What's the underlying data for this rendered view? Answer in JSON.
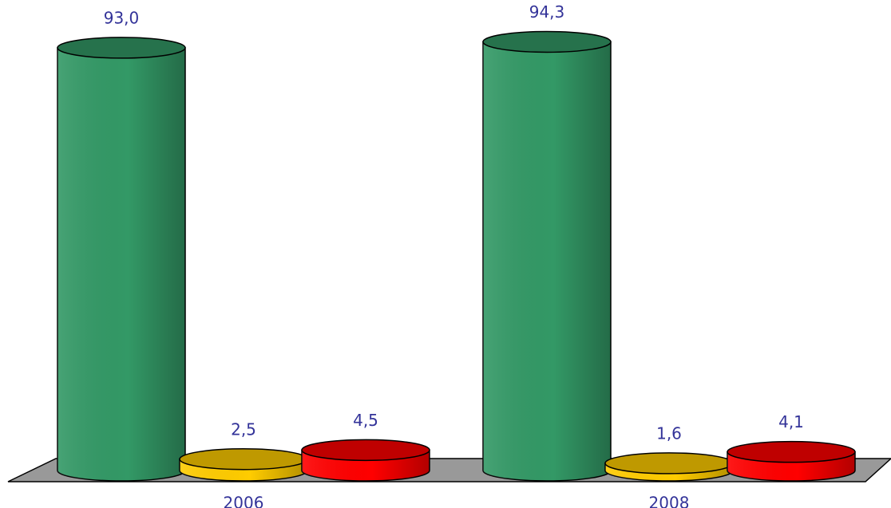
{
  "chart_data": {
    "type": "bar3d",
    "categories": [
      "2006",
      "2008"
    ],
    "series": [
      {
        "color": "#339966",
        "values": [
          93.0,
          94.3
        ],
        "value_labels": [
          "93,0",
          "94,3"
        ]
      },
      {
        "color": "#ffcc00",
        "values": [
          2.5,
          1.6
        ],
        "value_labels": [
          "2,5",
          "1,6"
        ]
      },
      {
        "color": "#ff0000",
        "values": [
          4.5,
          4.1
        ],
        "value_labels": [
          "4,5",
          "4,1"
        ]
      }
    ],
    "ylim": [
      0,
      100
    ]
  }
}
